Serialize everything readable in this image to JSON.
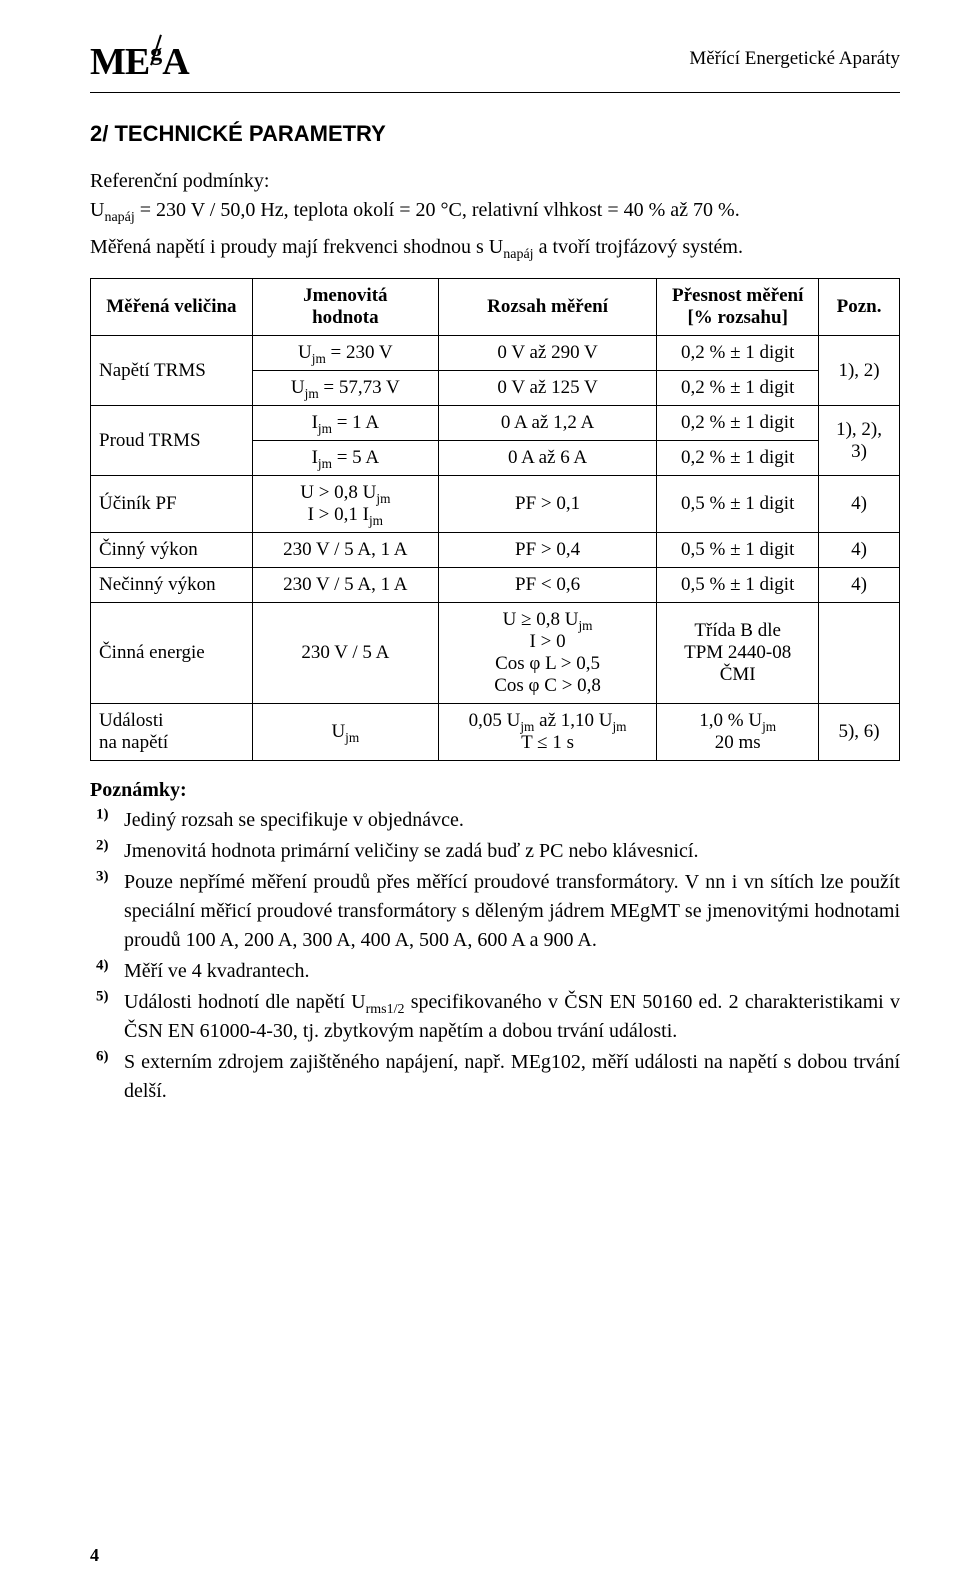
{
  "header": {
    "logo_m1": "M",
    "logo_e": "E",
    "logo_g": "g",
    "logo_a": "A",
    "right_text": "Měřící Energetické Aparáty"
  },
  "section_title": "2/ TECHNICKÉ PARAMETRY",
  "intro": {
    "line1_a": "Referenční podmínky:",
    "line1_b_pre": "U",
    "line1_b_sub": "napáj",
    "line1_b_post": " = 230 V / 50,0 Hz, teplota okolí = 20 °C, relativní vlhkost = 40 % až 70 %.",
    "line2_pre": "Měřená napětí i proudy mají frekvenci shodnou s U",
    "line2_sub": "napáj",
    "line2_post": " a tvoří trojfázový systém."
  },
  "table": {
    "headers": {
      "quantity": "Měřená veličina",
      "nominal_a": "Jmenovitá",
      "nominal_b": "hodnota",
      "range": "Rozsah měření",
      "accuracy_a": "Přesnost měření",
      "accuracy_b": "[% rozsahu]",
      "note": "Pozn."
    },
    "r1": {
      "q": "Napětí TRMS",
      "nom_pre": "U",
      "nom_sub": "jm",
      "nom_post": " = 230 V",
      "range": "0 V až 290 V",
      "acc": "0,2 % ± 1 digit",
      "note": "1), 2)"
    },
    "r2": {
      "nom_pre": "U",
      "nom_sub": "jm",
      "nom_post": " = 57,73 V",
      "range": "0 V až 125 V",
      "acc": "0,2 % ± 1 digit"
    },
    "r3": {
      "q": "Proud TRMS",
      "nom_pre": "I",
      "nom_sub": "jm",
      "nom_post": " = 1 A",
      "range": "0 A až 1,2 A",
      "acc": "0,2 % ± 1 digit",
      "note_a": "1), 2),",
      "note_b": "3)"
    },
    "r4": {
      "nom_pre": "I",
      "nom_sub": "jm",
      "nom_post": " = 5 A",
      "range": "0 A až 6 A",
      "acc": "0,2 % ± 1 digit"
    },
    "r5": {
      "q": "Účiník PF",
      "nom_l1_pre": "U > 0,8 U",
      "nom_l1_sub": "jm",
      "nom_l2_pre": "I > 0,1 I",
      "nom_l2_sub": "jm",
      "range": "PF > 0,1",
      "acc": "0,5 % ± 1 digit",
      "note": "4)"
    },
    "r6": {
      "q": "Činný výkon",
      "nom": "230 V / 5 A, 1 A",
      "range": "PF > 0,4",
      "acc": "0,5 % ± 1 digit",
      "note": "4)"
    },
    "r7": {
      "q": "Nečinný výkon",
      "nom": "230 V / 5 A, 1 A",
      "range": "PF < 0,6",
      "acc": "0,5 % ± 1 digit",
      "note": "4)"
    },
    "r8": {
      "q": "Činná energie",
      "nom": "230 V / 5 A",
      "range_l1_pre": "U ≥ 0,8 U",
      "range_l1_sub": "jm",
      "range_l2": "I > 0",
      "range_l3": "Cos φ L > 0,5",
      "range_l4": "Cos φ C > 0,8",
      "acc_l1": "Třída B dle",
      "acc_l2": "TPM 2440-08",
      "acc_l3": "ČMI",
      "note": ""
    },
    "r9": {
      "q_l1": "Události",
      "q_l2": "na napětí",
      "nom_pre": "U",
      "nom_sub": "jm",
      "range_l1_a": "0,05 U",
      "range_l1_sub1": "jm",
      "range_l1_b": " až 1,10 U",
      "range_l1_sub2": "jm",
      "range_l2": "T ≤ 1 s",
      "acc_l1_pre": "1,0 % U",
      "acc_l1_sub": "jm",
      "acc_l2": "20 ms",
      "note": "5), 6)"
    }
  },
  "notes": {
    "title": "Poznámky:",
    "n1": {
      "num": "1)",
      "text": "Jediný rozsah se specifikuje v objednávce."
    },
    "n2": {
      "num": "2)",
      "text": "Jmenovitá hodnota primární veličiny se zadá buď z PC nebo klávesnicí."
    },
    "n3": {
      "num": "3)",
      "text": "Pouze nepřímé měření proudů přes měřící proudové transformátory. V nn i vn sítích lze použít speciální měřicí proudové transformátory s děleným jádrem MEgMT se jmenovitými hodnotami proudů 100 A, 200 A, 300 A, 400 A, 500 A, 600 A a 900 A."
    },
    "n4": {
      "num": "4)",
      "text": "Měří ve 4 kvadrantech."
    },
    "n5": {
      "num": "5)",
      "text_a": "Události hodnotí dle napětí U",
      "sub": "rms1/2",
      "text_b": " specifikovaného v ČSN EN 50160 ed. 2 charakteristikami v ČSN EN 61000-4-30, tj. zbytkovým napětím a dobou trvání události."
    },
    "n6": {
      "num": "6)",
      "text": "S externím zdrojem zajištěného napájení, např. MEg102, měří události na napětí s dobou trvání delší."
    }
  },
  "page_number": "4"
}
